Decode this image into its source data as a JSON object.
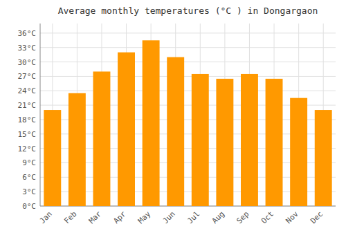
{
  "chart_data": {
    "type": "bar",
    "title": "Average monthly temperatures (°C ) in Dongargaon",
    "categories": [
      "Jan",
      "Feb",
      "Mar",
      "Apr",
      "May",
      "Jun",
      "Jul",
      "Aug",
      "Sep",
      "Oct",
      "Nov",
      "Dec"
    ],
    "values": [
      20.0,
      23.5,
      28.0,
      32.0,
      34.5,
      31.0,
      27.5,
      26.5,
      27.5,
      26.5,
      22.5,
      20.0
    ],
    "color": "#FF9900",
    "ylim": [
      0,
      38
    ],
    "yticks": [
      {
        "value": 0,
        "label": "0°C"
      },
      {
        "value": 3,
        "label": "3°C"
      },
      {
        "value": 6,
        "label": "6°C"
      },
      {
        "value": 9,
        "label": "9°C"
      },
      {
        "value": 12,
        "label": "12°C"
      },
      {
        "value": 15,
        "label": "15°C"
      },
      {
        "value": 18,
        "label": "18°C"
      },
      {
        "value": 21,
        "label": "21°C"
      },
      {
        "value": 24,
        "label": "24°C"
      },
      {
        "value": 27,
        "label": "27°C"
      },
      {
        "value": 30,
        "label": "30°C"
      },
      {
        "value": 33,
        "label": "33°C"
      },
      {
        "value": 36,
        "label": "36°C"
      }
    ],
    "grid": true
  }
}
